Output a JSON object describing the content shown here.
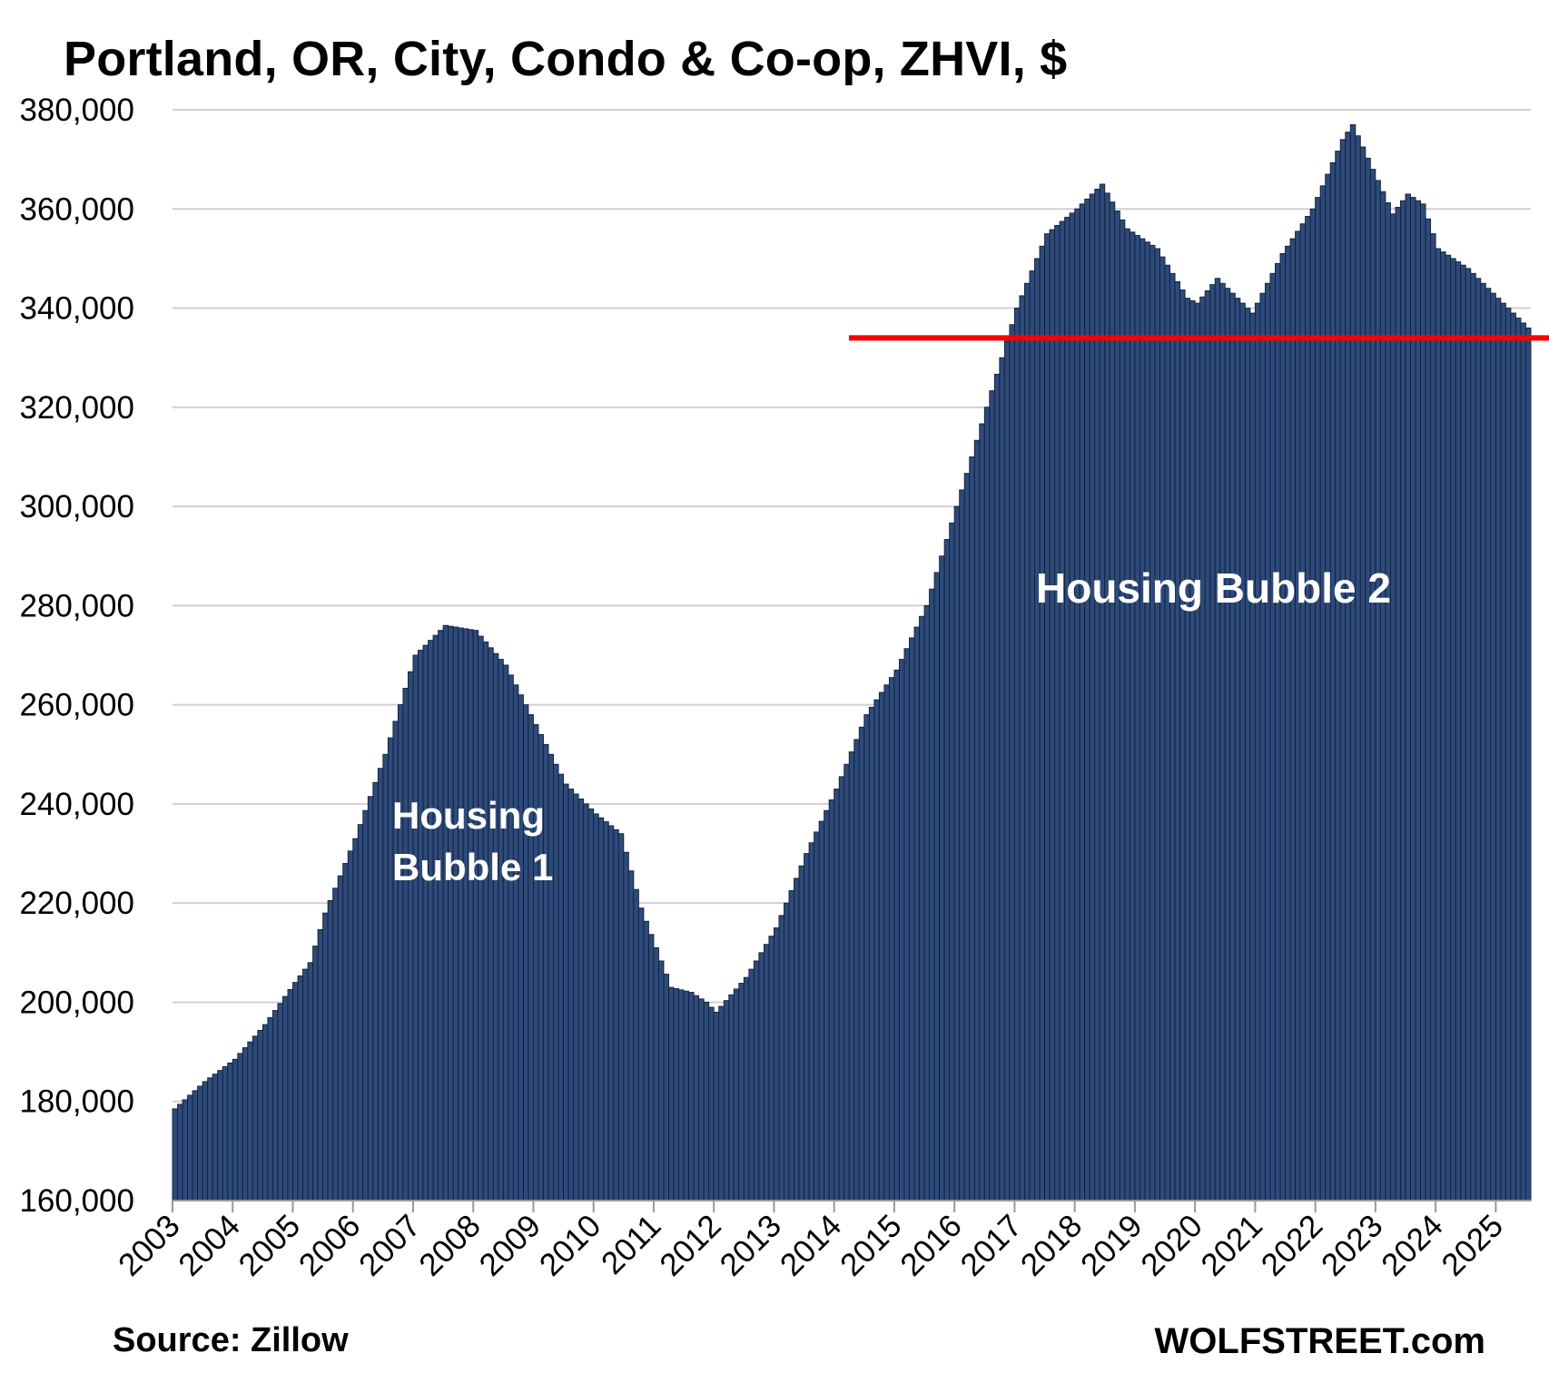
{
  "chart_data": {
    "type": "bar",
    "title": "Portland, OR, City, Condo & Co-op, ZHVI, $",
    "xlabel": "",
    "ylabel": "",
    "ylim": [
      160000,
      380000
    ],
    "y_ticks": [
      "160,000",
      "180,000",
      "200,000",
      "220,000",
      "240,000",
      "260,000",
      "280,000",
      "300,000",
      "320,000",
      "340,000",
      "360,000",
      "380,000"
    ],
    "x_ticks": [
      "2003",
      "2004",
      "2005",
      "2006",
      "2007",
      "2008",
      "2009",
      "2010",
      "2011",
      "2012",
      "2013",
      "2014",
      "2015",
      "2016",
      "2017",
      "2018",
      "2019",
      "2020",
      "2021",
      "2022",
      "2023",
      "2024",
      "2025"
    ],
    "frequency": "monthly",
    "grid": true,
    "bar_color": "#2e4a7a",
    "series": [
      {
        "x_start": "2003-01",
        "x_end": "2025-07",
        "anchors": [
          [
            "2003-01",
            178500
          ],
          [
            "2003-07",
            184000
          ],
          [
            "2004-01",
            188500
          ],
          [
            "2004-07",
            195500
          ],
          [
            "2005-01",
            204000
          ],
          [
            "2005-04",
            208000
          ],
          [
            "2005-07",
            218000
          ],
          [
            "2006-01",
            233000
          ],
          [
            "2006-07",
            250000
          ],
          [
            "2007-01",
            270000
          ],
          [
            "2007-07",
            276000
          ],
          [
            "2008-01",
            275000
          ],
          [
            "2008-07",
            268000
          ],
          [
            "2009-01",
            256000
          ],
          [
            "2009-07",
            244000
          ],
          [
            "2010-01",
            238000
          ],
          [
            "2010-06",
            234000
          ],
          [
            "2010-10",
            219000
          ],
          [
            "2011-01",
            211000
          ],
          [
            "2011-04",
            203000
          ],
          [
            "2011-08",
            202000
          ],
          [
            "2011-11",
            200000
          ],
          [
            "2012-01",
            198000
          ],
          [
            "2012-07",
            205000
          ],
          [
            "2013-01",
            215000
          ],
          [
            "2013-07",
            230000
          ],
          [
            "2014-01",
            243000
          ],
          [
            "2014-07",
            258000
          ],
          [
            "2015-01",
            267000
          ],
          [
            "2015-07",
            280000
          ],
          [
            "2016-01",
            300000
          ],
          [
            "2016-07",
            320000
          ],
          [
            "2017-01",
            340000
          ],
          [
            "2017-07",
            355000
          ],
          [
            "2018-01",
            360000
          ],
          [
            "2018-06",
            365000
          ],
          [
            "2018-11",
            356000
          ],
          [
            "2019-05",
            352000
          ],
          [
            "2019-11",
            342000
          ],
          [
            "2020-01",
            341000
          ],
          [
            "2020-05",
            346000
          ],
          [
            "2020-09",
            342000
          ],
          [
            "2020-12",
            339000
          ],
          [
            "2021-06",
            351000
          ],
          [
            "2021-12",
            360000
          ],
          [
            "2022-06",
            374000
          ],
          [
            "2022-08",
            377000
          ],
          [
            "2022-12",
            368000
          ],
          [
            "2023-04",
            359000
          ],
          [
            "2023-07",
            363000
          ],
          [
            "2023-10",
            361000
          ],
          [
            "2024-01",
            352000
          ],
          [
            "2024-07",
            348000
          ],
          [
            "2025-01",
            342000
          ],
          [
            "2025-04",
            339000
          ],
          [
            "2025-07",
            336000
          ]
        ]
      }
    ],
    "reference_line": {
      "value": 334000,
      "color": "#ff0000",
      "x_start": "2015-01"
    },
    "annotations": [
      {
        "text": "Housing Bubble 1",
        "color": "#ffffff"
      },
      {
        "text": "Housing Bubble 2",
        "color": "#ffffff"
      }
    ]
  },
  "footer": {
    "source": "Source: Zillow",
    "site": "WOLFSTREET.com"
  }
}
